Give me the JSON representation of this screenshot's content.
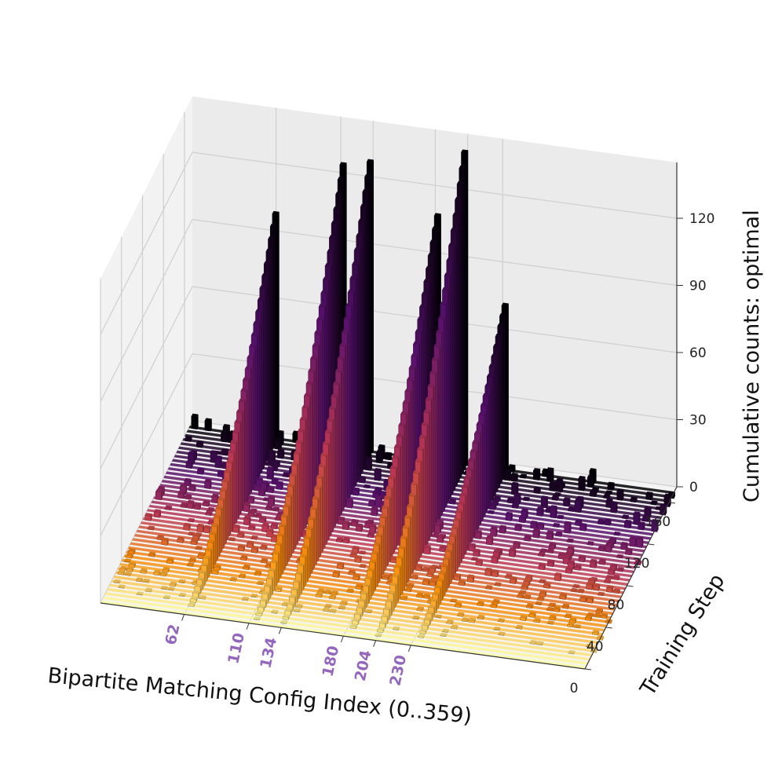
{
  "chart_data": {
    "type": "bar3d",
    "xlabel": "Bipartite Matching Config Index (0..359)",
    "ylabel": "Training Step",
    "zlabel": "Cumulative counts: optimal",
    "xlim": [
      0,
      359
    ],
    "ylim": [
      0,
      175
    ],
    "zlim": [
      0,
      145
    ],
    "highlighted_x_ticks": [
      62,
      110,
      134,
      180,
      204,
      230
    ],
    "highlight_color": "#9467bd",
    "y_ticks": [
      0,
      40,
      80,
      120,
      160
    ],
    "z_ticks": [
      0,
      30,
      60,
      90,
      120
    ],
    "colormap": "inferno (early steps yellow, late steps black)",
    "series": [
      {
        "name": "62",
        "x": 62,
        "peak_step": 168,
        "peak_count": 101
      },
      {
        "name": "110",
        "x": 110,
        "peak_step": 168,
        "peak_count": 127
      },
      {
        "name": "134",
        "x": 134,
        "peak_step": 168,
        "peak_count": 130
      },
      {
        "name": "180",
        "x": 180,
        "peak_step": 168,
        "peak_count": 110
      },
      {
        "name": "204",
        "x": 204,
        "peak_step": 168,
        "peak_count": 140
      },
      {
        "name": "230",
        "x": 230,
        "peak_step": 168,
        "peak_count": 74
      }
    ],
    "background_counts": "near-zero noise (0-6) across all other config indices"
  }
}
